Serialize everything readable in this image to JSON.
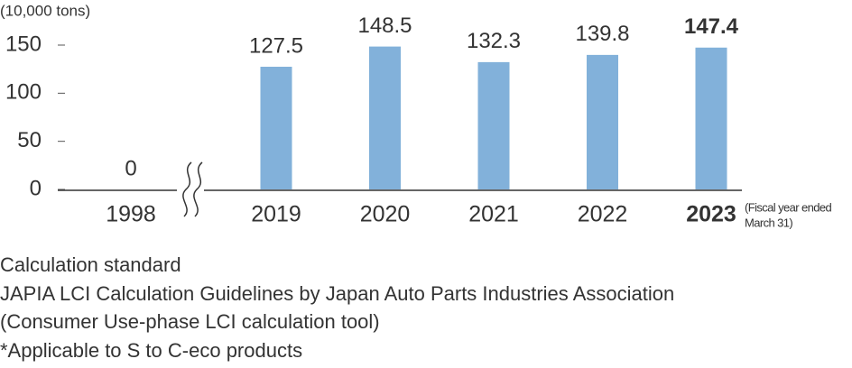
{
  "chart_data": {
    "type": "bar",
    "y_unit": "(10,000 tons)",
    "categories": [
      "1998",
      "2019",
      "2020",
      "2021",
      "2022",
      "2023"
    ],
    "values": [
      0,
      127.5,
      148.5,
      132.3,
      139.8,
      147.4
    ],
    "color": "#82b1da",
    "ylim": [
      0,
      150
    ],
    "yticks": [
      0,
      50,
      100,
      150
    ],
    "x_note": [
      "(Fiscal year ended",
      "March 31)"
    ],
    "footnotes": [
      "Calculation standard",
      "JAPIA LCI Calculation Guidelines by Japan Auto Parts Industries Association",
      "(Consumer Use-phase LCI calculation tool)",
      "*Applicable to S to C-eco products"
    ]
  }
}
